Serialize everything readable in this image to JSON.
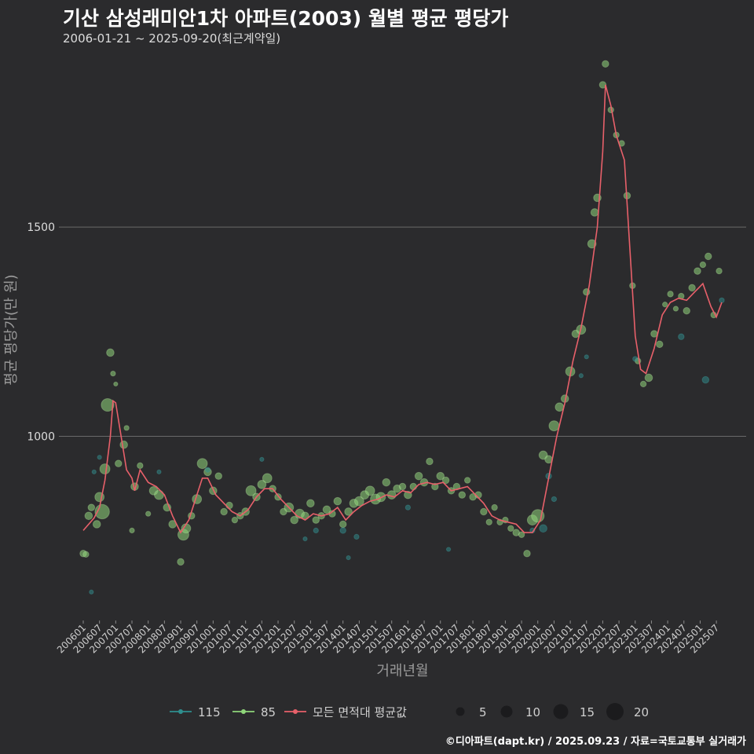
{
  "header": {
    "title": "기산 삼성래미안1차 아파트(2003) 월별 평균 평당가",
    "subtitle": "2006-01-21 ~ 2025-09-20(최근계약일)"
  },
  "footer": "©디아파트(dapt.kr) / 2025.09.23 / 자료=국토교통부 실거래가",
  "colors": {
    "background": "#2b2b2d",
    "gridline": "#6a6a6a",
    "series_115": "#2f8f8f",
    "series_85": "#8fd67a",
    "series_avg": "#e8606a"
  },
  "chart_data": {
    "type": "scatter",
    "xlabel": "거래년월",
    "ylabel": "평균 평당가(만 원)",
    "ylim": [
      560,
      1930
    ],
    "yticks": [
      1000,
      1500
    ],
    "x_range": [
      "2006-01",
      "2025-09"
    ],
    "xticks": [
      "200601",
      "200607",
      "200701",
      "200707",
      "200801",
      "200807",
      "200901",
      "200907",
      "201001",
      "201007",
      "201101",
      "201107",
      "201201",
      "201207",
      "201301",
      "201307",
      "201401",
      "201407",
      "201501",
      "201507",
      "201601",
      "201607",
      "201701",
      "201707",
      "201801",
      "201807",
      "201901",
      "201907",
      "202001",
      "202007",
      "202101",
      "202107",
      "202201",
      "202207",
      "202301",
      "202307",
      "202401",
      "202407",
      "202501",
      "202507"
    ],
    "grid": true,
    "legend": {
      "position": "bottom",
      "series_labels": [
        "115",
        "85",
        "모든 면적대 평균값"
      ],
      "size_labels": [
        "5",
        "10",
        "15",
        "20"
      ]
    },
    "series": [
      {
        "name": "115",
        "points": [
          [
            "2006-05",
            915,
            2
          ],
          [
            "2006-07",
            950,
            2
          ],
          [
            "2006-04",
            628,
            2
          ],
          [
            "2008-05",
            915,
            2
          ],
          [
            "2009-11",
            920,
            3
          ],
          [
            "2011-07",
            945,
            2
          ],
          [
            "2012-11",
            755,
            2
          ],
          [
            "2013-03",
            775,
            3
          ],
          [
            "2014-01",
            775,
            4
          ],
          [
            "2014-03",
            710,
            2
          ],
          [
            "2014-06",
            760,
            3
          ],
          [
            "2016-01",
            830,
            3
          ],
          [
            "2017-04",
            730,
            2
          ],
          [
            "2019-11",
            775,
            3
          ],
          [
            "2020-03",
            780,
            6
          ],
          [
            "2020-05",
            905,
            4
          ],
          [
            "2020-07",
            850,
            3
          ],
          [
            "2021-07",
            1190,
            2
          ],
          [
            "2021-05",
            1145,
            2
          ],
          [
            "2023-01",
            1185,
            3
          ],
          [
            "2024-06",
            1238,
            4
          ],
          [
            "2025-03",
            1135,
            5
          ],
          [
            "2025-09",
            1325,
            3
          ]
        ]
      },
      {
        "name": "85",
        "points": [
          [
            "2006-01",
            720,
            5
          ],
          [
            "2006-02",
            718,
            4
          ],
          [
            "2006-03",
            810,
            6
          ],
          [
            "2006-04",
            830,
            5
          ],
          [
            "2006-06",
            790,
            6
          ],
          [
            "2006-07",
            855,
            8
          ],
          [
            "2006-08",
            820,
            14
          ],
          [
            "2006-09",
            922,
            9
          ],
          [
            "2006-10",
            1075,
            12
          ],
          [
            "2006-11",
            1200,
            6
          ],
          [
            "2006-12",
            1150,
            3
          ],
          [
            "2007-01",
            1125,
            2
          ],
          [
            "2007-02",
            935,
            5
          ],
          [
            "2007-04",
            980,
            6
          ],
          [
            "2007-05",
            1020,
            3
          ],
          [
            "2007-07",
            775,
            3
          ],
          [
            "2007-08",
            880,
            6
          ],
          [
            "2007-10",
            930,
            4
          ],
          [
            "2008-01",
            815,
            3
          ],
          [
            "2008-03",
            870,
            7
          ],
          [
            "2008-05",
            860,
            8
          ],
          [
            "2008-08",
            830,
            6
          ],
          [
            "2008-10",
            790,
            6
          ],
          [
            "2009-01",
            700,
            5
          ],
          [
            "2009-02",
            765,
            10
          ],
          [
            "2009-03",
            780,
            8
          ],
          [
            "2009-05",
            810,
            5
          ],
          [
            "2009-07",
            850,
            8
          ],
          [
            "2009-09",
            935,
            9
          ],
          [
            "2009-11",
            915,
            6
          ],
          [
            "2010-01",
            870,
            6
          ],
          [
            "2010-03",
            905,
            5
          ],
          [
            "2010-05",
            820,
            5
          ],
          [
            "2010-07",
            835,
            5
          ],
          [
            "2010-09",
            800,
            4
          ],
          [
            "2010-11",
            810,
            5
          ],
          [
            "2011-01",
            820,
            6
          ],
          [
            "2011-03",
            870,
            9
          ],
          [
            "2011-05",
            855,
            6
          ],
          [
            "2011-07",
            885,
            7
          ],
          [
            "2011-09",
            900,
            8
          ],
          [
            "2011-11",
            875,
            5
          ],
          [
            "2012-01",
            855,
            5
          ],
          [
            "2012-03",
            820,
            5
          ],
          [
            "2012-05",
            830,
            8
          ],
          [
            "2012-07",
            800,
            6
          ],
          [
            "2012-09",
            815,
            8
          ],
          [
            "2012-11",
            810,
            6
          ],
          [
            "2013-01",
            840,
            6
          ],
          [
            "2013-03",
            800,
            5
          ],
          [
            "2013-05",
            810,
            5
          ],
          [
            "2013-07",
            825,
            6
          ],
          [
            "2013-09",
            815,
            5
          ],
          [
            "2013-11",
            845,
            6
          ],
          [
            "2014-01",
            790,
            5
          ],
          [
            "2014-03",
            820,
            6
          ],
          [
            "2014-05",
            840,
            7
          ],
          [
            "2014-07",
            845,
            8
          ],
          [
            "2014-09",
            860,
            7
          ],
          [
            "2014-11",
            870,
            8
          ],
          [
            "2015-01",
            850,
            9
          ],
          [
            "2015-03",
            855,
            8
          ],
          [
            "2015-05",
            890,
            6
          ],
          [
            "2015-07",
            860,
            7
          ],
          [
            "2015-09",
            875,
            6
          ],
          [
            "2015-11",
            880,
            5
          ],
          [
            "2016-01",
            860,
            6
          ],
          [
            "2016-03",
            880,
            5
          ],
          [
            "2016-05",
            905,
            6
          ],
          [
            "2016-07",
            890,
            6
          ],
          [
            "2016-09",
            940,
            5
          ],
          [
            "2016-11",
            880,
            5
          ],
          [
            "2017-01",
            905,
            6
          ],
          [
            "2017-03",
            895,
            5
          ],
          [
            "2017-05",
            870,
            5
          ],
          [
            "2017-07",
            880,
            5
          ],
          [
            "2017-09",
            860,
            5
          ],
          [
            "2017-11",
            895,
            4
          ],
          [
            "2018-01",
            855,
            5
          ],
          [
            "2018-03",
            860,
            5
          ],
          [
            "2018-05",
            820,
            5
          ],
          [
            "2018-07",
            795,
            4
          ],
          [
            "2018-09",
            830,
            4
          ],
          [
            "2018-11",
            795,
            4
          ],
          [
            "2019-01",
            800,
            4
          ],
          [
            "2019-03",
            780,
            4
          ],
          [
            "2019-05",
            770,
            5
          ],
          [
            "2019-07",
            765,
            4
          ],
          [
            "2019-09",
            720,
            5
          ],
          [
            "2019-11",
            800,
            9
          ],
          [
            "2020-01",
            810,
            12
          ],
          [
            "2020-03",
            955,
            7
          ],
          [
            "2020-05",
            945,
            6
          ],
          [
            "2020-07",
            1025,
            9
          ],
          [
            "2020-09",
            1070,
            7
          ],
          [
            "2020-11",
            1090,
            6
          ],
          [
            "2021-01",
            1155,
            8
          ],
          [
            "2021-03",
            1245,
            6
          ],
          [
            "2021-05",
            1255,
            8
          ],
          [
            "2021-07",
            1345,
            5
          ],
          [
            "2021-09",
            1460,
            7
          ],
          [
            "2021-10",
            1535,
            6
          ],
          [
            "2021-11",
            1570,
            6
          ],
          [
            "2022-01",
            1840,
            5
          ],
          [
            "2022-02",
            1890,
            5
          ],
          [
            "2022-04",
            1780,
            4
          ],
          [
            "2022-06",
            1720,
            4
          ],
          [
            "2022-08",
            1700,
            4
          ],
          [
            "2022-10",
            1575,
            5
          ],
          [
            "2022-12",
            1360,
            4
          ],
          [
            "2023-02",
            1180,
            4
          ],
          [
            "2023-04",
            1125,
            4
          ],
          [
            "2023-06",
            1140,
            6
          ],
          [
            "2023-08",
            1245,
            5
          ],
          [
            "2023-10",
            1220,
            5
          ],
          [
            "2023-12",
            1315,
            3
          ],
          [
            "2024-02",
            1340,
            4
          ],
          [
            "2024-04",
            1305,
            3
          ],
          [
            "2024-06",
            1335,
            4
          ],
          [
            "2024-08",
            1300,
            5
          ],
          [
            "2024-10",
            1355,
            5
          ],
          [
            "2024-12",
            1395,
            5
          ],
          [
            "2025-02",
            1410,
            4
          ],
          [
            "2025-04",
            1430,
            5
          ],
          [
            "2025-06",
            1290,
            4
          ],
          [
            "2025-08",
            1395,
            4
          ]
        ]
      },
      {
        "name": "모든 면적대 평균값",
        "line": [
          [
            "2006-01",
            775
          ],
          [
            "2006-05",
            805
          ],
          [
            "2006-07",
            830
          ],
          [
            "2006-09",
            895
          ],
          [
            "2006-11",
            1000
          ],
          [
            "2006-12",
            1085
          ],
          [
            "2007-01",
            1080
          ],
          [
            "2007-03",
            1000
          ],
          [
            "2007-05",
            920
          ],
          [
            "2007-07",
            900
          ],
          [
            "2007-08",
            870
          ],
          [
            "2007-10",
            920
          ],
          [
            "2008-01",
            890
          ],
          [
            "2008-04",
            880
          ],
          [
            "2008-07",
            860
          ],
          [
            "2008-10",
            810
          ],
          [
            "2009-01",
            770
          ],
          [
            "2009-04",
            800
          ],
          [
            "2009-07",
            860
          ],
          [
            "2009-09",
            900
          ],
          [
            "2009-11",
            900
          ],
          [
            "2010-02",
            860
          ],
          [
            "2010-05",
            840
          ],
          [
            "2010-08",
            820
          ],
          [
            "2010-11",
            810
          ],
          [
            "2011-02",
            825
          ],
          [
            "2011-05",
            855
          ],
          [
            "2011-08",
            875
          ],
          [
            "2011-11",
            875
          ],
          [
            "2012-02",
            850
          ],
          [
            "2012-05",
            830
          ],
          [
            "2012-08",
            810
          ],
          [
            "2012-11",
            800
          ],
          [
            "2013-02",
            815
          ],
          [
            "2013-05",
            810
          ],
          [
            "2013-08",
            815
          ],
          [
            "2013-11",
            830
          ],
          [
            "2014-02",
            800
          ],
          [
            "2014-05",
            820
          ],
          [
            "2014-08",
            835
          ],
          [
            "2014-11",
            845
          ],
          [
            "2015-02",
            850
          ],
          [
            "2015-05",
            860
          ],
          [
            "2015-08",
            855
          ],
          [
            "2015-11",
            870
          ],
          [
            "2016-02",
            865
          ],
          [
            "2016-05",
            885
          ],
          [
            "2016-08",
            890
          ],
          [
            "2016-11",
            885
          ],
          [
            "2017-02",
            890
          ],
          [
            "2017-05",
            870
          ],
          [
            "2017-08",
            875
          ],
          [
            "2017-11",
            880
          ],
          [
            "2018-02",
            860
          ],
          [
            "2018-05",
            840
          ],
          [
            "2018-08",
            810
          ],
          [
            "2018-11",
            800
          ],
          [
            "2019-02",
            795
          ],
          [
            "2019-05",
            790
          ],
          [
            "2019-08",
            770
          ],
          [
            "2019-11",
            770
          ],
          [
            "2020-02",
            800
          ],
          [
            "2020-05",
            900
          ],
          [
            "2020-08",
            1000
          ],
          [
            "2020-11",
            1080
          ],
          [
            "2021-02",
            1180
          ],
          [
            "2021-05",
            1260
          ],
          [
            "2021-08",
            1360
          ],
          [
            "2021-11",
            1500
          ],
          [
            "2022-01",
            1680
          ],
          [
            "2022-02",
            1840
          ],
          [
            "2022-04",
            1790
          ],
          [
            "2022-06",
            1720
          ],
          [
            "2022-09",
            1660
          ],
          [
            "2022-11",
            1450
          ],
          [
            "2023-01",
            1240
          ],
          [
            "2023-03",
            1160
          ],
          [
            "2023-05",
            1150
          ],
          [
            "2023-08",
            1210
          ],
          [
            "2023-11",
            1290
          ],
          [
            "2024-02",
            1320
          ],
          [
            "2024-05",
            1330
          ],
          [
            "2024-08",
            1325
          ],
          [
            "2024-11",
            1345
          ],
          [
            "2025-02",
            1365
          ],
          [
            "2025-05",
            1310
          ],
          [
            "2025-07",
            1285
          ],
          [
            "2025-09",
            1320
          ]
        ]
      }
    ]
  }
}
